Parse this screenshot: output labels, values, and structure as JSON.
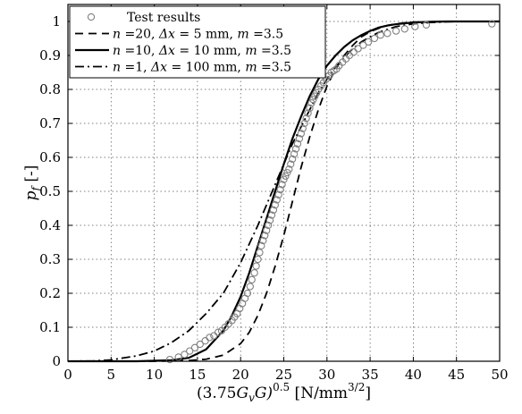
{
  "chart_data": {
    "type": "line",
    "xlabel": "(3.75G_vG)^0.5 [N/mm^3/2]",
    "xlabel_parts": {
      "base": "(3.75",
      "g": "G",
      "v": "v",
      "g2": "G)",
      "exp": "0.5",
      "unit_open": " [N/mm",
      "unit_exp": "3/2",
      "unit_close": "]"
    },
    "ylabel": "p_f [-]",
    "ylabel_parts": {
      "p": "p",
      "f": "f",
      "unit": " [-]"
    },
    "xlim": [
      0,
      50
    ],
    "ylim": [
      0,
      1.05
    ],
    "xticks": [
      0,
      5,
      10,
      15,
      20,
      25,
      30,
      35,
      40,
      45,
      50
    ],
    "yticks": [
      0,
      0.1,
      0.2,
      0.3,
      0.4,
      0.5,
      0.6,
      0.7,
      0.8,
      0.9,
      1
    ],
    "grid": true,
    "legend_position": "top-left",
    "legend": [
      {
        "key": "test",
        "style": "circles",
        "text_plain": "Test results"
      },
      {
        "key": "n20",
        "style": "dashed",
        "n": "n",
        "n_val": " =20, ",
        "delta": "Δx",
        "delta_val": " = 5 mm, ",
        "m": "m",
        "m_val": " =3.5"
      },
      {
        "key": "n10",
        "style": "solid",
        "n": "n",
        "n_val": " =10, ",
        "delta": "Δx",
        "delta_val": " = 10 mm, ",
        "m": "m",
        "m_val": " =3.5"
      },
      {
        "key": "n1",
        "style": "dashdot",
        "n": "n",
        "n_val": " =1, ",
        "delta": "Δx",
        "delta_val": " = 100 mm, ",
        "m": "m",
        "m_val": " =3.5"
      }
    ],
    "series": [
      {
        "key": "n20",
        "style": "dashed",
        "x": [
          0,
          10,
          14,
          16,
          18,
          20,
          21,
          22,
          23,
          24,
          25,
          26,
          27,
          28,
          29,
          30,
          31,
          32,
          33,
          34,
          35,
          36,
          37,
          38,
          39,
          40,
          42,
          44,
          46,
          48,
          50
        ],
        "y": [
          0,
          0,
          0.002,
          0.006,
          0.018,
          0.052,
          0.085,
          0.135,
          0.2,
          0.28,
          0.37,
          0.47,
          0.57,
          0.66,
          0.74,
          0.81,
          0.86,
          0.9,
          0.93,
          0.955,
          0.97,
          0.98,
          0.988,
          0.993,
          0.996,
          0.998,
          0.999,
          1,
          1,
          1,
          1
        ]
      },
      {
        "key": "n10",
        "style": "solid",
        "x": [
          0,
          8,
          12,
          14,
          16,
          18,
          19,
          20,
          21,
          22,
          23,
          24,
          25,
          26,
          27,
          28,
          29,
          30,
          31,
          32,
          33,
          34,
          35,
          36,
          37,
          38,
          40,
          42,
          44,
          46,
          48,
          50
        ],
        "y": [
          0,
          0,
          0.003,
          0.01,
          0.035,
          0.09,
          0.135,
          0.19,
          0.26,
          0.34,
          0.42,
          0.5,
          0.58,
          0.655,
          0.72,
          0.78,
          0.83,
          0.87,
          0.9,
          0.925,
          0.945,
          0.96,
          0.972,
          0.982,
          0.988,
          0.992,
          0.997,
          0.999,
          1,
          1,
          1,
          1
        ]
      },
      {
        "key": "n1",
        "style": "dashdot",
        "x": [
          0,
          3,
          5,
          8,
          10,
          12,
          14,
          16,
          18,
          19,
          20,
          21,
          22,
          23,
          24,
          25,
          26,
          27,
          28,
          29,
          30,
          31,
          32,
          33,
          34,
          35,
          36,
          38,
          40,
          42,
          44,
          46,
          48,
          50
        ],
        "y": [
          0,
          0.001,
          0.004,
          0.016,
          0.03,
          0.055,
          0.09,
          0.14,
          0.2,
          0.245,
          0.29,
          0.345,
          0.4,
          0.46,
          0.52,
          0.58,
          0.64,
          0.69,
          0.74,
          0.79,
          0.83,
          0.865,
          0.895,
          0.92,
          0.94,
          0.955,
          0.968,
          0.985,
          0.993,
          0.997,
          0.999,
          1,
          1,
          1
        ]
      }
    ],
    "scatter": {
      "key": "test",
      "x": [
        11.8,
        12.8,
        13.5,
        14.1,
        14.7,
        15.3,
        15.9,
        16.4,
        16.9,
        17.4,
        17.8,
        18.2,
        18.6,
        19.0,
        19.3,
        19.6,
        19.9,
        20.2,
        20.5,
        20.8,
        21.1,
        21.3,
        21.6,
        21.8,
        22.0,
        22.2,
        22.4,
        22.6,
        22.8,
        23.0,
        23.2,
        23.4,
        23.6,
        23.8,
        24.0,
        24.2,
        24.4,
        24.6,
        24.8,
        25.0,
        25.2,
        25.4,
        25.6,
        25.8,
        26.0,
        26.2,
        26.4,
        26.6,
        26.8,
        27.0,
        27.2,
        27.4,
        27.6,
        27.8,
        28.0,
        28.2,
        28.4,
        28.6,
        28.8,
        29.0,
        29.3,
        29.6,
        29.9,
        30.2,
        30.5,
        30.8,
        31.1,
        31.4,
        31.8,
        32.2,
        32.6,
        33.1,
        33.6,
        34.2,
        34.8,
        35.5,
        36.2,
        37.0,
        38.0,
        39.0,
        40.2,
        41.5,
        49.1
      ],
      "y": [
        0.005,
        0.012,
        0.02,
        0.03,
        0.04,
        0.05,
        0.06,
        0.07,
        0.075,
        0.085,
        0.09,
        0.1,
        0.11,
        0.12,
        0.13,
        0.14,
        0.155,
        0.17,
        0.185,
        0.2,
        0.22,
        0.24,
        0.26,
        0.28,
        0.3,
        0.32,
        0.34,
        0.355,
        0.37,
        0.385,
        0.4,
        0.415,
        0.43,
        0.445,
        0.46,
        0.475,
        0.49,
        0.505,
        0.52,
        0.535,
        0.545,
        0.555,
        0.565,
        0.58,
        0.595,
        0.61,
        0.625,
        0.64,
        0.655,
        0.67,
        0.685,
        0.7,
        0.715,
        0.73,
        0.745,
        0.76,
        0.77,
        0.78,
        0.79,
        0.8,
        0.81,
        0.82,
        0.83,
        0.84,
        0.85,
        0.855,
        0.86,
        0.87,
        0.88,
        0.89,
        0.9,
        0.91,
        0.92,
        0.93,
        0.94,
        0.95,
        0.96,
        0.965,
        0.972,
        0.978,
        0.985,
        0.99,
        0.993
      ]
    }
  }
}
